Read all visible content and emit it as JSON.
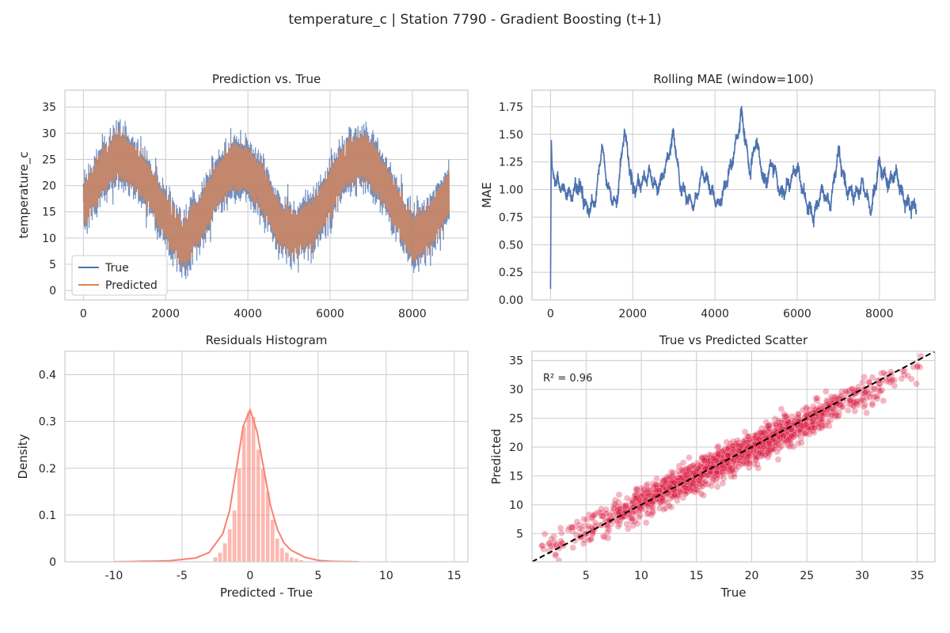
{
  "figure": {
    "suptitle": "temperature_c | Station 7790 - Gradient Boosting (t+1)"
  },
  "colors": {
    "true_line": "#4c72b0",
    "pred_line": "#dd8452",
    "mae_line": "#4c72b0",
    "hist_bar": "#fa8072",
    "kde_line": "#fa8072",
    "scatter": "#dc143c",
    "grid": "#cccccc",
    "ref_line": "#000000"
  },
  "chart_data": [
    {
      "type": "line",
      "title": "Prediction vs. True",
      "xlabel": "",
      "ylabel": "temperature_c",
      "xlim": [
        -450,
        9350
      ],
      "ylim": [
        -1.8,
        38.2
      ],
      "xticks": [
        0,
        2000,
        4000,
        6000,
        8000
      ],
      "yticks": [
        0,
        5,
        10,
        15,
        20,
        25,
        30,
        35
      ],
      "grid": true,
      "legend": "lower-left",
      "n_points": 8900,
      "series": [
        {
          "name": "True",
          "x": [
            0,
            400,
            800,
            1200,
            1600,
            2000,
            2400,
            2800,
            3200,
            3600,
            4000,
            4400,
            4800,
            5200,
            5600,
            6000,
            6400,
            6800,
            7200,
            7600,
            8000,
            8400,
            8900
          ],
          "y": [
            16,
            22,
            26,
            24,
            20,
            14,
            9,
            13,
            19,
            24,
            23,
            19,
            12,
            11,
            13,
            19,
            24,
            26,
            22,
            16,
            10,
            12,
            19
          ]
        },
        {
          "name": "Predicted",
          "x": [
            0,
            400,
            800,
            1200,
            1600,
            2000,
            2400,
            2800,
            3200,
            3600,
            4000,
            4400,
            4800,
            5200,
            5600,
            6000,
            6400,
            6800,
            7200,
            7600,
            8000,
            8400,
            8900
          ],
          "y": [
            16,
            22,
            26,
            24,
            20,
            14,
            9,
            13,
            19,
            24,
            23,
            19,
            12,
            11,
            13,
            19,
            24,
            26,
            22,
            16,
            10,
            12,
            19
          ]
        }
      ]
    },
    {
      "type": "line",
      "title": "Rolling MAE (window=100)",
      "xlabel": "",
      "ylabel": "MAE",
      "xlim": [
        -450,
        9350
      ],
      "ylim": [
        0.0,
        1.9
      ],
      "xticks": [
        0,
        2000,
        4000,
        6000,
        8000
      ],
      "yticks": [
        0.0,
        0.25,
        0.5,
        0.75,
        1.0,
        1.25,
        1.5,
        1.75
      ],
      "grid": true,
      "series": [
        {
          "x": [
            0,
            20,
            40,
            100,
            300,
            500,
            700,
            900,
            1100,
            1250,
            1400,
            1600,
            1800,
            2000,
            2200,
            2400,
            2600,
            2800,
            3000,
            3150,
            3300,
            3500,
            3700,
            3900,
            4100,
            4300,
            4450,
            4650,
            4850,
            5000,
            5200,
            5400,
            5600,
            5800,
            6000,
            6200,
            6400,
            6600,
            6800,
            7000,
            7200,
            7400,
            7600,
            7800,
            8000,
            8200,
            8400,
            8600,
            8800,
            8900
          ],
          "y": [
            0.1,
            1.45,
            1.2,
            1.1,
            1.0,
            0.95,
            1.05,
            0.8,
            0.9,
            1.4,
            1.0,
            0.85,
            1.55,
            1.0,
            1.05,
            1.15,
            1.0,
            1.2,
            1.5,
            1.05,
            0.95,
            0.85,
            1.15,
            1.0,
            0.85,
            1.1,
            1.3,
            1.7,
            1.15,
            1.45,
            1.05,
            1.25,
            0.95,
            1.05,
            1.2,
            0.9,
            0.75,
            1.0,
            0.85,
            1.35,
            1.0,
            0.95,
            1.05,
            0.8,
            1.25,
            1.05,
            1.15,
            0.9,
            0.85,
            0.85
          ]
        }
      ]
    },
    {
      "type": "bar",
      "title": "Residuals Histogram",
      "xlabel": "Predicted - True",
      "ylabel": "Density",
      "xlim": [
        -13.6,
        16.0
      ],
      "ylim": [
        0,
        0.45
      ],
      "xticks": [
        -10,
        -5,
        0,
        5,
        10,
        15
      ],
      "yticks": [
        0.0,
        0.1,
        0.2,
        0.3,
        0.4
      ],
      "grid": true,
      "bins": {
        "left_edges": [
          -2.7,
          -2.35,
          -2.0,
          -1.65,
          -1.3,
          -0.95,
          -0.6,
          -0.25,
          0.1,
          0.45,
          0.8,
          1.15,
          1.5,
          1.85,
          2.2,
          2.55,
          2.9,
          3.25,
          3.6
        ],
        "width": 0.35,
        "density": [
          0.01,
          0.02,
          0.04,
          0.07,
          0.11,
          0.2,
          0.29,
          0.32,
          0.31,
          0.24,
          0.2,
          0.15,
          0.09,
          0.05,
          0.03,
          0.02,
          0.01,
          0.007,
          0.004
        ]
      },
      "kde": {
        "x": [
          -10.0,
          -8.0,
          -6.0,
          -4.0,
          -3.0,
          -2.0,
          -1.5,
          -1.0,
          -0.5,
          0.0,
          0.5,
          1.0,
          1.5,
          2.0,
          2.5,
          3.0,
          4.0,
          5.0,
          6.0,
          8.0
        ],
        "y": [
          0.0,
          0.001,
          0.002,
          0.008,
          0.02,
          0.06,
          0.11,
          0.2,
          0.29,
          0.325,
          0.28,
          0.2,
          0.12,
          0.07,
          0.04,
          0.025,
          0.01,
          0.003,
          0.001,
          0.0
        ]
      }
    },
    {
      "type": "scatter",
      "title": "True vs Predicted Scatter",
      "xlabel": "True",
      "ylabel": "Predicted",
      "xlim": [
        0.1,
        36.6
      ],
      "ylim": [
        0.1,
        36.6
      ],
      "xticks": [
        5,
        10,
        15,
        20,
        25,
        30,
        35
      ],
      "yticks": [
        5,
        10,
        15,
        20,
        25,
        30,
        35
      ],
      "grid": true,
      "annotation": "R² = 0.96",
      "reference_line": {
        "x": [
          0.1,
          36.6
        ],
        "y": [
          0.1,
          36.6
        ]
      },
      "n_points": 1800,
      "trend": {
        "x_range": [
          1,
          35.5
        ],
        "center_x": 18,
        "spread": 6.5,
        "residual_sd": 1.3
      }
    }
  ]
}
